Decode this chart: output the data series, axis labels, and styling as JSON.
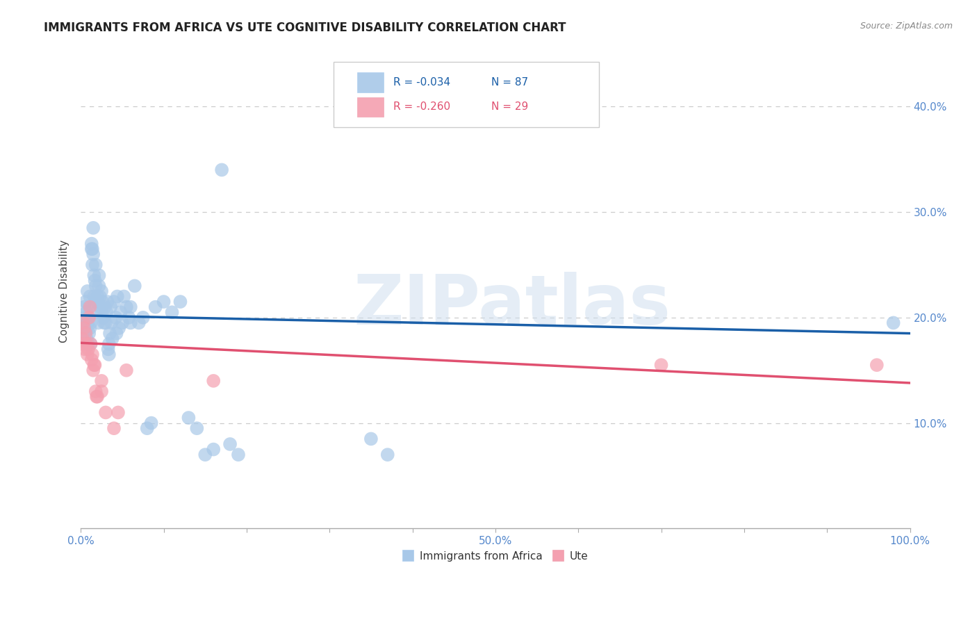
{
  "title": "IMMIGRANTS FROM AFRICA VS UTE COGNITIVE DISABILITY CORRELATION CHART",
  "source": "Source: ZipAtlas.com",
  "ylabel": "Cognitive Disability",
  "xlim": [
    0,
    1.0
  ],
  "ylim": [
    0.0,
    0.45
  ],
  "xticks": [
    0.0,
    0.1,
    0.2,
    0.3,
    0.4,
    0.5,
    0.6,
    0.7,
    0.8,
    0.9,
    1.0
  ],
  "xtick_labels_show": [
    0.0,
    0.5,
    1.0
  ],
  "yticks": [
    0.1,
    0.2,
    0.3,
    0.4
  ],
  "watermark": "ZIPatlas",
  "legend_blue_r": "-0.034",
  "legend_blue_n": "87",
  "legend_pink_r": "-0.260",
  "legend_pink_n": "29",
  "blue_color": "#a8c8e8",
  "pink_color": "#f4a0b0",
  "blue_line_color": "#1a5fa8",
  "pink_line_color": "#e05070",
  "blue_scatter": [
    [
      0.001,
      0.192
    ],
    [
      0.002,
      0.195
    ],
    [
      0.003,
      0.185
    ],
    [
      0.004,
      0.21
    ],
    [
      0.005,
      0.2
    ],
    [
      0.005,
      0.19
    ],
    [
      0.006,
      0.215
    ],
    [
      0.006,
      0.188
    ],
    [
      0.007,
      0.205
    ],
    [
      0.007,
      0.18
    ],
    [
      0.008,
      0.225
    ],
    [
      0.008,
      0.195
    ],
    [
      0.009,
      0.175
    ],
    [
      0.009,
      0.2
    ],
    [
      0.01,
      0.21
    ],
    [
      0.01,
      0.185
    ],
    [
      0.011,
      0.19
    ],
    [
      0.011,
      0.22
    ],
    [
      0.012,
      0.195
    ],
    [
      0.012,
      0.175
    ],
    [
      0.013,
      0.265
    ],
    [
      0.013,
      0.27
    ],
    [
      0.014,
      0.265
    ],
    [
      0.014,
      0.25
    ],
    [
      0.015,
      0.285
    ],
    [
      0.015,
      0.26
    ],
    [
      0.016,
      0.24
    ],
    [
      0.016,
      0.22
    ],
    [
      0.017,
      0.235
    ],
    [
      0.017,
      0.215
    ],
    [
      0.018,
      0.25
    ],
    [
      0.018,
      0.23
    ],
    [
      0.019,
      0.205
    ],
    [
      0.02,
      0.22
    ],
    [
      0.02,
      0.215
    ],
    [
      0.021,
      0.195
    ],
    [
      0.022,
      0.23
    ],
    [
      0.022,
      0.24
    ],
    [
      0.023,
      0.22
    ],
    [
      0.024,
      0.21
    ],
    [
      0.025,
      0.205
    ],
    [
      0.025,
      0.225
    ],
    [
      0.026,
      0.215
    ],
    [
      0.027,
      0.2
    ],
    [
      0.028,
      0.195
    ],
    [
      0.029,
      0.21
    ],
    [
      0.03,
      0.195
    ],
    [
      0.031,
      0.205
    ],
    [
      0.032,
      0.215
    ],
    [
      0.033,
      0.17
    ],
    [
      0.034,
      0.175
    ],
    [
      0.034,
      0.165
    ],
    [
      0.035,
      0.185
    ],
    [
      0.036,
      0.21
    ],
    [
      0.037,
      0.195
    ],
    [
      0.038,
      0.18
    ],
    [
      0.04,
      0.215
    ],
    [
      0.042,
      0.2
    ],
    [
      0.043,
      0.185
    ],
    [
      0.044,
      0.22
    ],
    [
      0.046,
      0.19
    ],
    [
      0.048,
      0.205
    ],
    [
      0.05,
      0.195
    ],
    [
      0.052,
      0.22
    ],
    [
      0.055,
      0.21
    ],
    [
      0.058,
      0.2
    ],
    [
      0.06,
      0.195
    ],
    [
      0.06,
      0.21
    ],
    [
      0.065,
      0.23
    ],
    [
      0.07,
      0.195
    ],
    [
      0.075,
      0.2
    ],
    [
      0.08,
      0.095
    ],
    [
      0.085,
      0.1
    ],
    [
      0.09,
      0.21
    ],
    [
      0.1,
      0.215
    ],
    [
      0.11,
      0.205
    ],
    [
      0.12,
      0.215
    ],
    [
      0.13,
      0.105
    ],
    [
      0.14,
      0.095
    ],
    [
      0.15,
      0.07
    ],
    [
      0.16,
      0.075
    ],
    [
      0.17,
      0.34
    ],
    [
      0.18,
      0.08
    ],
    [
      0.19,
      0.07
    ],
    [
      0.35,
      0.085
    ],
    [
      0.37,
      0.07
    ],
    [
      0.98,
      0.195
    ]
  ],
  "pink_scatter": [
    [
      0.001,
      0.175
    ],
    [
      0.002,
      0.18
    ],
    [
      0.003,
      0.195
    ],
    [
      0.004,
      0.19
    ],
    [
      0.005,
      0.17
    ],
    [
      0.006,
      0.185
    ],
    [
      0.007,
      0.175
    ],
    [
      0.008,
      0.165
    ],
    [
      0.009,
      0.17
    ],
    [
      0.01,
      0.2
    ],
    [
      0.011,
      0.21
    ],
    [
      0.012,
      0.175
    ],
    [
      0.013,
      0.16
    ],
    [
      0.014,
      0.165
    ],
    [
      0.015,
      0.15
    ],
    [
      0.016,
      0.155
    ],
    [
      0.017,
      0.155
    ],
    [
      0.018,
      0.13
    ],
    [
      0.019,
      0.125
    ],
    [
      0.02,
      0.125
    ],
    [
      0.025,
      0.14
    ],
    [
      0.025,
      0.13
    ],
    [
      0.03,
      0.11
    ],
    [
      0.04,
      0.095
    ],
    [
      0.045,
      0.11
    ],
    [
      0.055,
      0.15
    ],
    [
      0.16,
      0.14
    ],
    [
      0.7,
      0.155
    ],
    [
      0.96,
      0.155
    ]
  ],
  "blue_line": {
    "x0": 0.0,
    "x1": 1.0,
    "y0": 0.202,
    "y1": 0.185
  },
  "pink_line": {
    "x0": 0.0,
    "x1": 1.0,
    "y0": 0.176,
    "y1": 0.138
  },
  "background_color": "#ffffff",
  "grid_color": "#cccccc",
  "title_fontsize": 12,
  "axis_label_fontsize": 11,
  "tick_fontsize": 11,
  "right_tick_color": "#5588cc",
  "blue_tick_color": "#5588cc"
}
